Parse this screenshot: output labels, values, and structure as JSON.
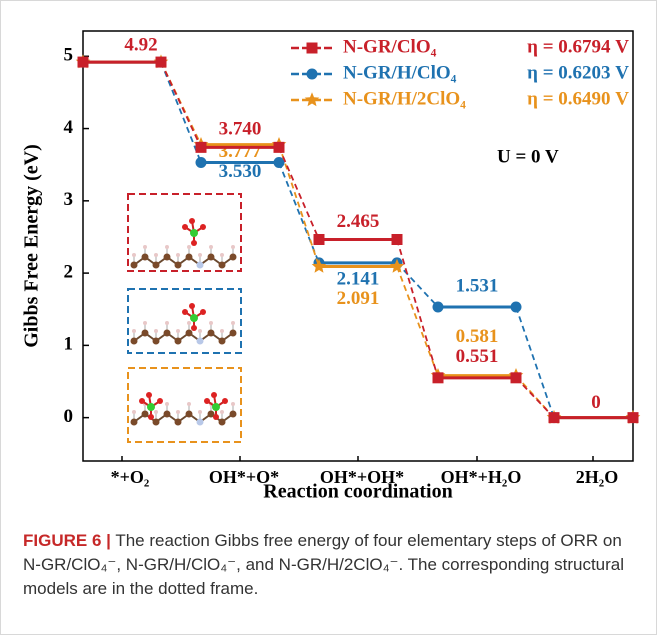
{
  "chart_data": {
    "type": "energy-steps",
    "y_label": "Gibbs Free Energy (eV)",
    "x_label": "Reaction coordination",
    "categories": [
      "*+O₂",
      "OH*+O*",
      "OH*+OH*",
      "OH*+H₂O",
      "2H₂O"
    ],
    "ylim": [
      -0.6,
      5.35
    ],
    "yticks": [
      0,
      1,
      2,
      3,
      4,
      5
    ],
    "legend": "upper right",
    "series": [
      {
        "name": "N-GR/ClO₄",
        "annotation": "η = 0.6794 V",
        "color": "#c8202a",
        "marker": "square",
        "values": [
          4.92,
          3.74,
          2.465,
          0.551,
          0
        ],
        "value_labels": [
          "4.92",
          "3.740",
          "2.465",
          "0.551",
          "0"
        ]
      },
      {
        "name": "N-GR/H/ClO₄",
        "annotation": "η = 0.6203 V",
        "color": "#1f72b0",
        "marker": "circle",
        "values": [
          4.92,
          3.53,
          2.141,
          1.531,
          0
        ],
        "value_labels": [
          null,
          "3.530",
          "2.141",
          "1.531",
          null
        ]
      },
      {
        "name": "N-GR/H/2ClO₄",
        "annotation": "η = 0.6490 V",
        "color": "#e8921c",
        "marker": "star",
        "values": [
          4.92,
          3.777,
          2.091,
          0.581,
          0
        ],
        "value_labels": [
          null,
          "3.777",
          "2.091",
          "0.581",
          null
        ]
      }
    ],
    "note": "U = 0 V"
  },
  "caption": {
    "label": "FIGURE 6 |",
    "text": "The reaction Gibbs free energy of four elementary steps of ORR on N-GR/ClO₄⁻, N-GR/H/ClO₄⁻, and N-GR/H/2ClO₄⁻. The corresponding structural models are in the dotted frame."
  }
}
